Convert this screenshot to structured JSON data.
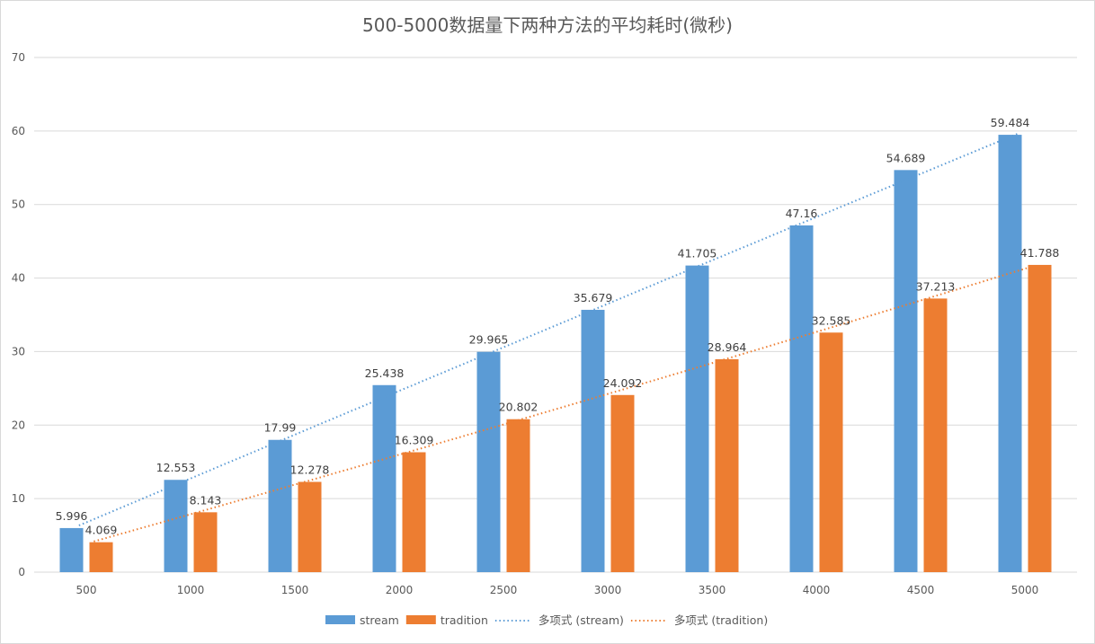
{
  "chart_data": {
    "type": "bar",
    "title": "500-5000数据量下两种方法的平均耗时(微秒)",
    "xlabel": "",
    "ylabel": "",
    "ylim": [
      0,
      70
    ],
    "yticks": [
      0,
      10,
      20,
      30,
      40,
      50,
      60,
      70
    ],
    "grid": true,
    "legend_position": "bottom",
    "categories": [
      "500",
      "1000",
      "1500",
      "2000",
      "2500",
      "3000",
      "3500",
      "4000",
      "4500",
      "5000"
    ],
    "series": [
      {
        "name": "stream",
        "color": "#5b9bd5",
        "values": [
          5.996,
          12.553,
          17.99,
          25.438,
          29.965,
          35.679,
          41.705,
          47.16,
          54.689,
          59.484
        ]
      },
      {
        "name": "tradition",
        "color": "#ed7d31",
        "values": [
          4.069,
          8.143,
          12.278,
          16.309,
          20.802,
          24.092,
          28.964,
          32.585,
          37.213,
          41.788
        ]
      }
    ],
    "trendlines": [
      {
        "name": "多项式 (stream)",
        "series": "stream",
        "kind": "polynomial",
        "order": 2,
        "color": "#5b9bd5"
      },
      {
        "name": "多项式 (tradition)",
        "series": "tradition",
        "kind": "polynomial",
        "order": 2,
        "color": "#ed7d31"
      }
    ]
  }
}
